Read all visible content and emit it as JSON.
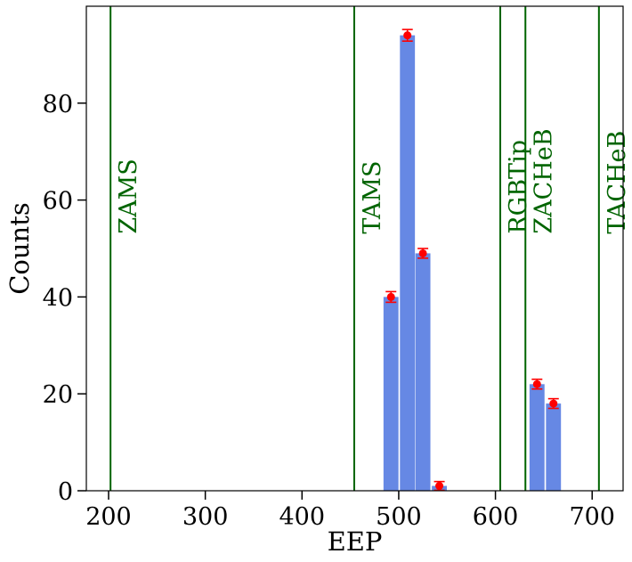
{
  "chart_data": {
    "type": "bar",
    "title": "",
    "xlabel": "EEP",
    "ylabel": "Counts",
    "xlim": [
      177,
      732
    ],
    "ylim": [
      0,
      100
    ],
    "xticks": [
      200,
      300,
      400,
      500,
      600,
      700
    ],
    "yticks": [
      0,
      20,
      40,
      60,
      80
    ],
    "grid": false,
    "bar_color": "#6688e4",
    "bar_width": 15.5,
    "bars": [
      {
        "x": 492,
        "value": 40
      },
      {
        "x": 509,
        "value": 94
      },
      {
        "x": 525,
        "value": 49
      },
      {
        "x": 542,
        "value": 1
      },
      {
        "x": 643,
        "value": 22
      },
      {
        "x": 660,
        "value": 18
      }
    ],
    "error_points": [
      {
        "x": 492,
        "y": 40,
        "err": 1.1
      },
      {
        "x": 509,
        "y": 94,
        "err": 1.2
      },
      {
        "x": 525,
        "y": 49,
        "err": 1.0
      },
      {
        "x": 542,
        "y": 1,
        "err": 0.9
      },
      {
        "x": 643,
        "y": 22,
        "err": 1.0
      },
      {
        "x": 660,
        "y": 18,
        "err": 1.0
      }
    ],
    "error_color": "#ff0000",
    "phase_color": "#006400",
    "phases": [
      {
        "label": "ZAMS",
        "x": 202
      },
      {
        "label": "TAMS",
        "x": 454
      },
      {
        "label": "RGBTip",
        "x": 605
      },
      {
        "label": "ZACHeB",
        "x": 631
      },
      {
        "label": "TACHeB",
        "x": 707
      }
    ]
  }
}
